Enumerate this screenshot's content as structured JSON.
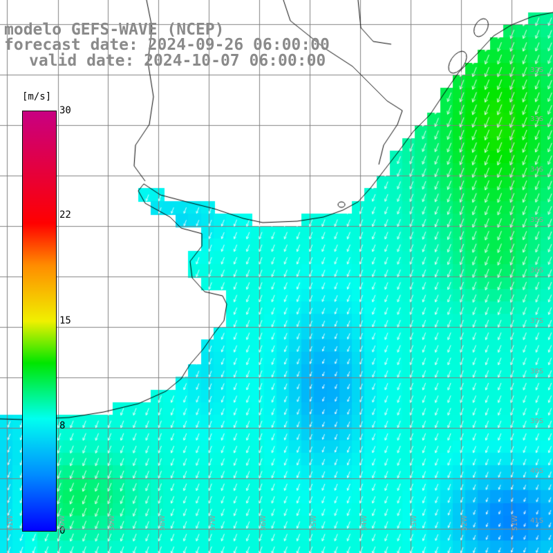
{
  "title": {
    "line1": "modelo GEFS-WAVE (NCEP)",
    "line2": "forecast date: 2024-09-26 06:00:00",
    "line3": "valid date: 2024-10-07 06:00:00"
  },
  "colorbar": {
    "unit": "[m/s]",
    "min": 0,
    "max": 30,
    "ticks": [
      "30",
      "22",
      "15",
      "8",
      "0"
    ]
  },
  "grid": {
    "lat_labels": [
      "32S",
      "33S",
      "34S",
      "35S",
      "36S",
      "37S",
      "38S",
      "39S",
      "40S",
      "41S"
    ],
    "lon_labels": [
      "61W",
      "60W",
      "59W",
      "58W",
      "57W",
      "56W",
      "55W",
      "54W",
      "53W",
      "52W",
      "51W"
    ]
  },
  "colors": {
    "land": "#ffffff",
    "grid": "#808080",
    "coast": "#000000",
    "arrows": "#ffffff",
    "title": "#8a8a8a"
  },
  "map_data": {
    "field": "wind speed at 10 m",
    "units": "m/s",
    "range_shown": [
      3,
      12
    ],
    "wind_direction": "from northeast toward southwest"
  }
}
